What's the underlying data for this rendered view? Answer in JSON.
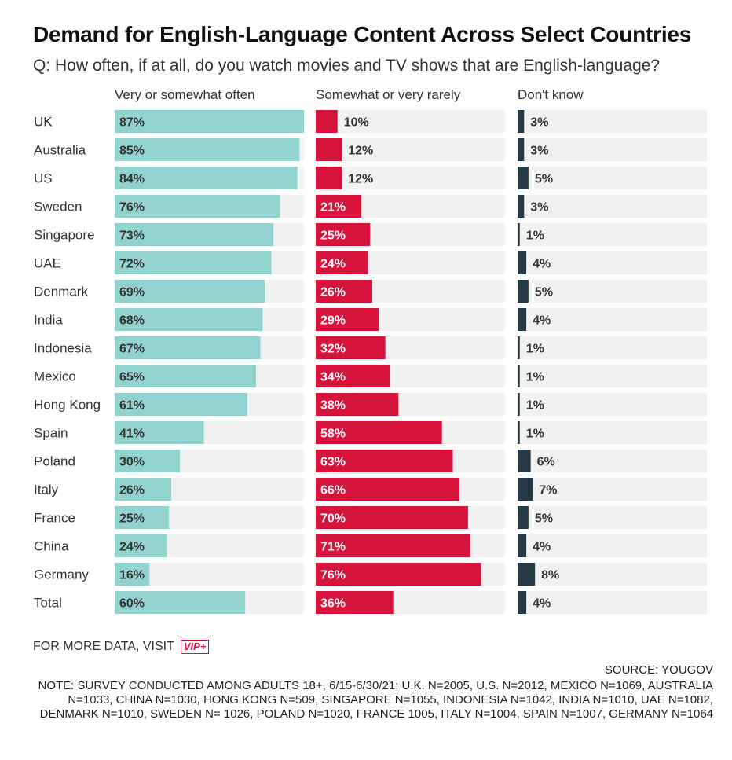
{
  "header": {
    "title": "Demand for English-Language Content Across Select Countries",
    "subtitle": "Q: How often, if at all, do you watch movies and TV shows that are English-language?"
  },
  "colors": {
    "often": "#93d3cf",
    "rarely": "#d6143b",
    "dont_know": "#243b47",
    "track": "#f1f1f1"
  },
  "chart_data": {
    "type": "bar",
    "orientation": "horizontal",
    "ylim": [
      0,
      100
    ],
    "categories": [
      "UK",
      "Australia",
      "US",
      "Sweden",
      "Singapore",
      "UAE",
      "Denmark",
      "India",
      "Indonesia",
      "Mexico",
      "Hong Kong",
      "Spain",
      "Poland",
      "Italy",
      "France",
      "China",
      "Germany",
      "Total"
    ],
    "series": [
      {
        "name": "Very or somewhat often",
        "values": [
          87,
          85,
          84,
          76,
          73,
          72,
          69,
          68,
          67,
          65,
          61,
          41,
          30,
          26,
          25,
          24,
          16,
          60
        ]
      },
      {
        "name": "Somewhat or very rarely",
        "values": [
          10,
          12,
          12,
          21,
          25,
          24,
          26,
          29,
          32,
          34,
          38,
          58,
          63,
          66,
          70,
          71,
          76,
          36
        ]
      },
      {
        "name": "Don't know",
        "values": [
          3,
          3,
          5,
          3,
          1,
          4,
          5,
          4,
          1,
          1,
          1,
          1,
          6,
          7,
          5,
          4,
          8,
          4
        ]
      }
    ],
    "value_suffix": "%"
  },
  "footer": {
    "more_data": "FOR MORE DATA, VISIT",
    "vip_badge": "VIP+",
    "source": "SOURCE: YOUGOV",
    "note": "NOTE: SURVEY CONDUCTED AMONG ADULTS 18+, 6/15-6/30/21; U.K. N=2005, U.S. N=2012, MEXICO N=1069, AUSTRALIA N=1033, CHINA N=1030, HONG KONG N=509, SINGAPORE N=1055, INDONESIA N=1042, INDIA N=1010, UAE N=1082, DENMARK N=1010, SWEDEN N= 1026, POLAND N=1020, FRANCE 1005, ITALY N=1004, SPAIN N=1007, GERMANY N=1064"
  }
}
